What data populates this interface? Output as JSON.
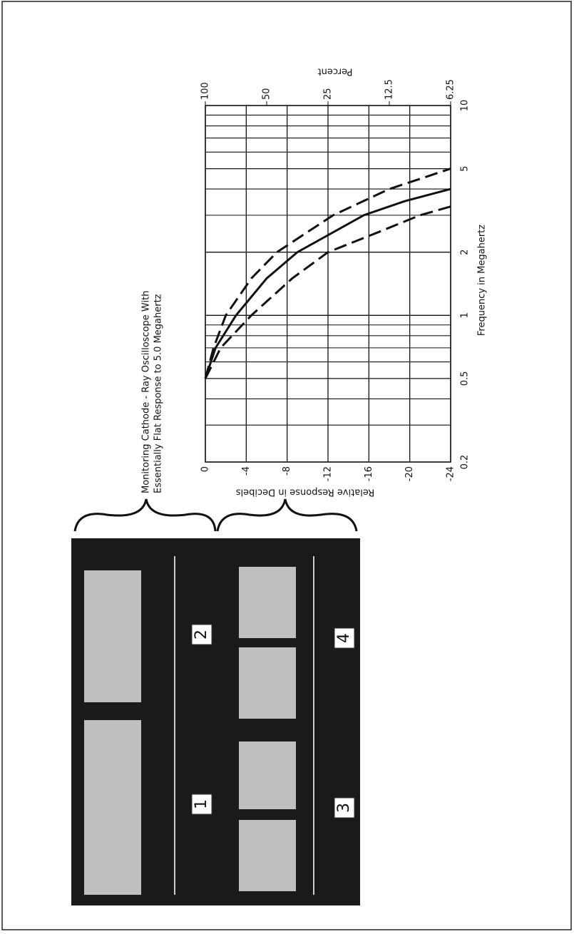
{
  "caption": [
    "Monitoring Cathode - Ray Oscilloscope With",
    "Essentially Flat Response to 5.0 Megahertz"
  ],
  "photo": {
    "labels": [
      "1",
      "2",
      "3",
      "4"
    ]
  },
  "chart_data": {
    "type": "line",
    "xlabel": "Frequency in Megahertz",
    "ylabel": "Relative Response in Decibels",
    "y2label": "Percent",
    "xscale": "log",
    "xlim": [
      0.2,
      10
    ],
    "xticks": [
      0.2,
      0.5,
      1,
      2,
      5,
      10
    ],
    "xgrid_minor": [
      0.3,
      0.4,
      0.6,
      0.7,
      0.8,
      0.9,
      3,
      4,
      6,
      7,
      8,
      9
    ],
    "ylim": [
      0,
      -24
    ],
    "yticks": [
      0,
      -4,
      -8,
      -12,
      -16,
      -20,
      -24
    ],
    "y2scale": "log",
    "y2lim": [
      100,
      6.25
    ],
    "y2ticks": [
      100,
      50,
      25,
      12.5,
      6.25
    ],
    "grid": true,
    "series": [
      {
        "color": "#111111",
        "dash": "solid",
        "x": [
          0.5,
          0.7,
          1,
          1.5,
          2,
          3,
          3.5,
          4
        ],
        "values": [
          0,
          -1,
          -3,
          -6,
          -9,
          -15.5,
          -19.5,
          -24
        ]
      },
      {
        "color": "#111111",
        "dash": "dashed",
        "x": [
          0.5,
          0.7,
          1,
          1.5,
          2,
          3,
          4,
          5
        ],
        "values": [
          0,
          -0.8,
          -2,
          -4.5,
          -7,
          -12.5,
          -18,
          -24
        ]
      },
      {
        "color": "#111111",
        "dash": "dashed",
        "x": [
          0.5,
          0.7,
          1,
          1.5,
          2,
          2.5,
          3,
          3.3
        ],
        "values": [
          0,
          -1.5,
          -4.5,
          -8.5,
          -12,
          -17,
          -21,
          -24
        ]
      }
    ]
  }
}
